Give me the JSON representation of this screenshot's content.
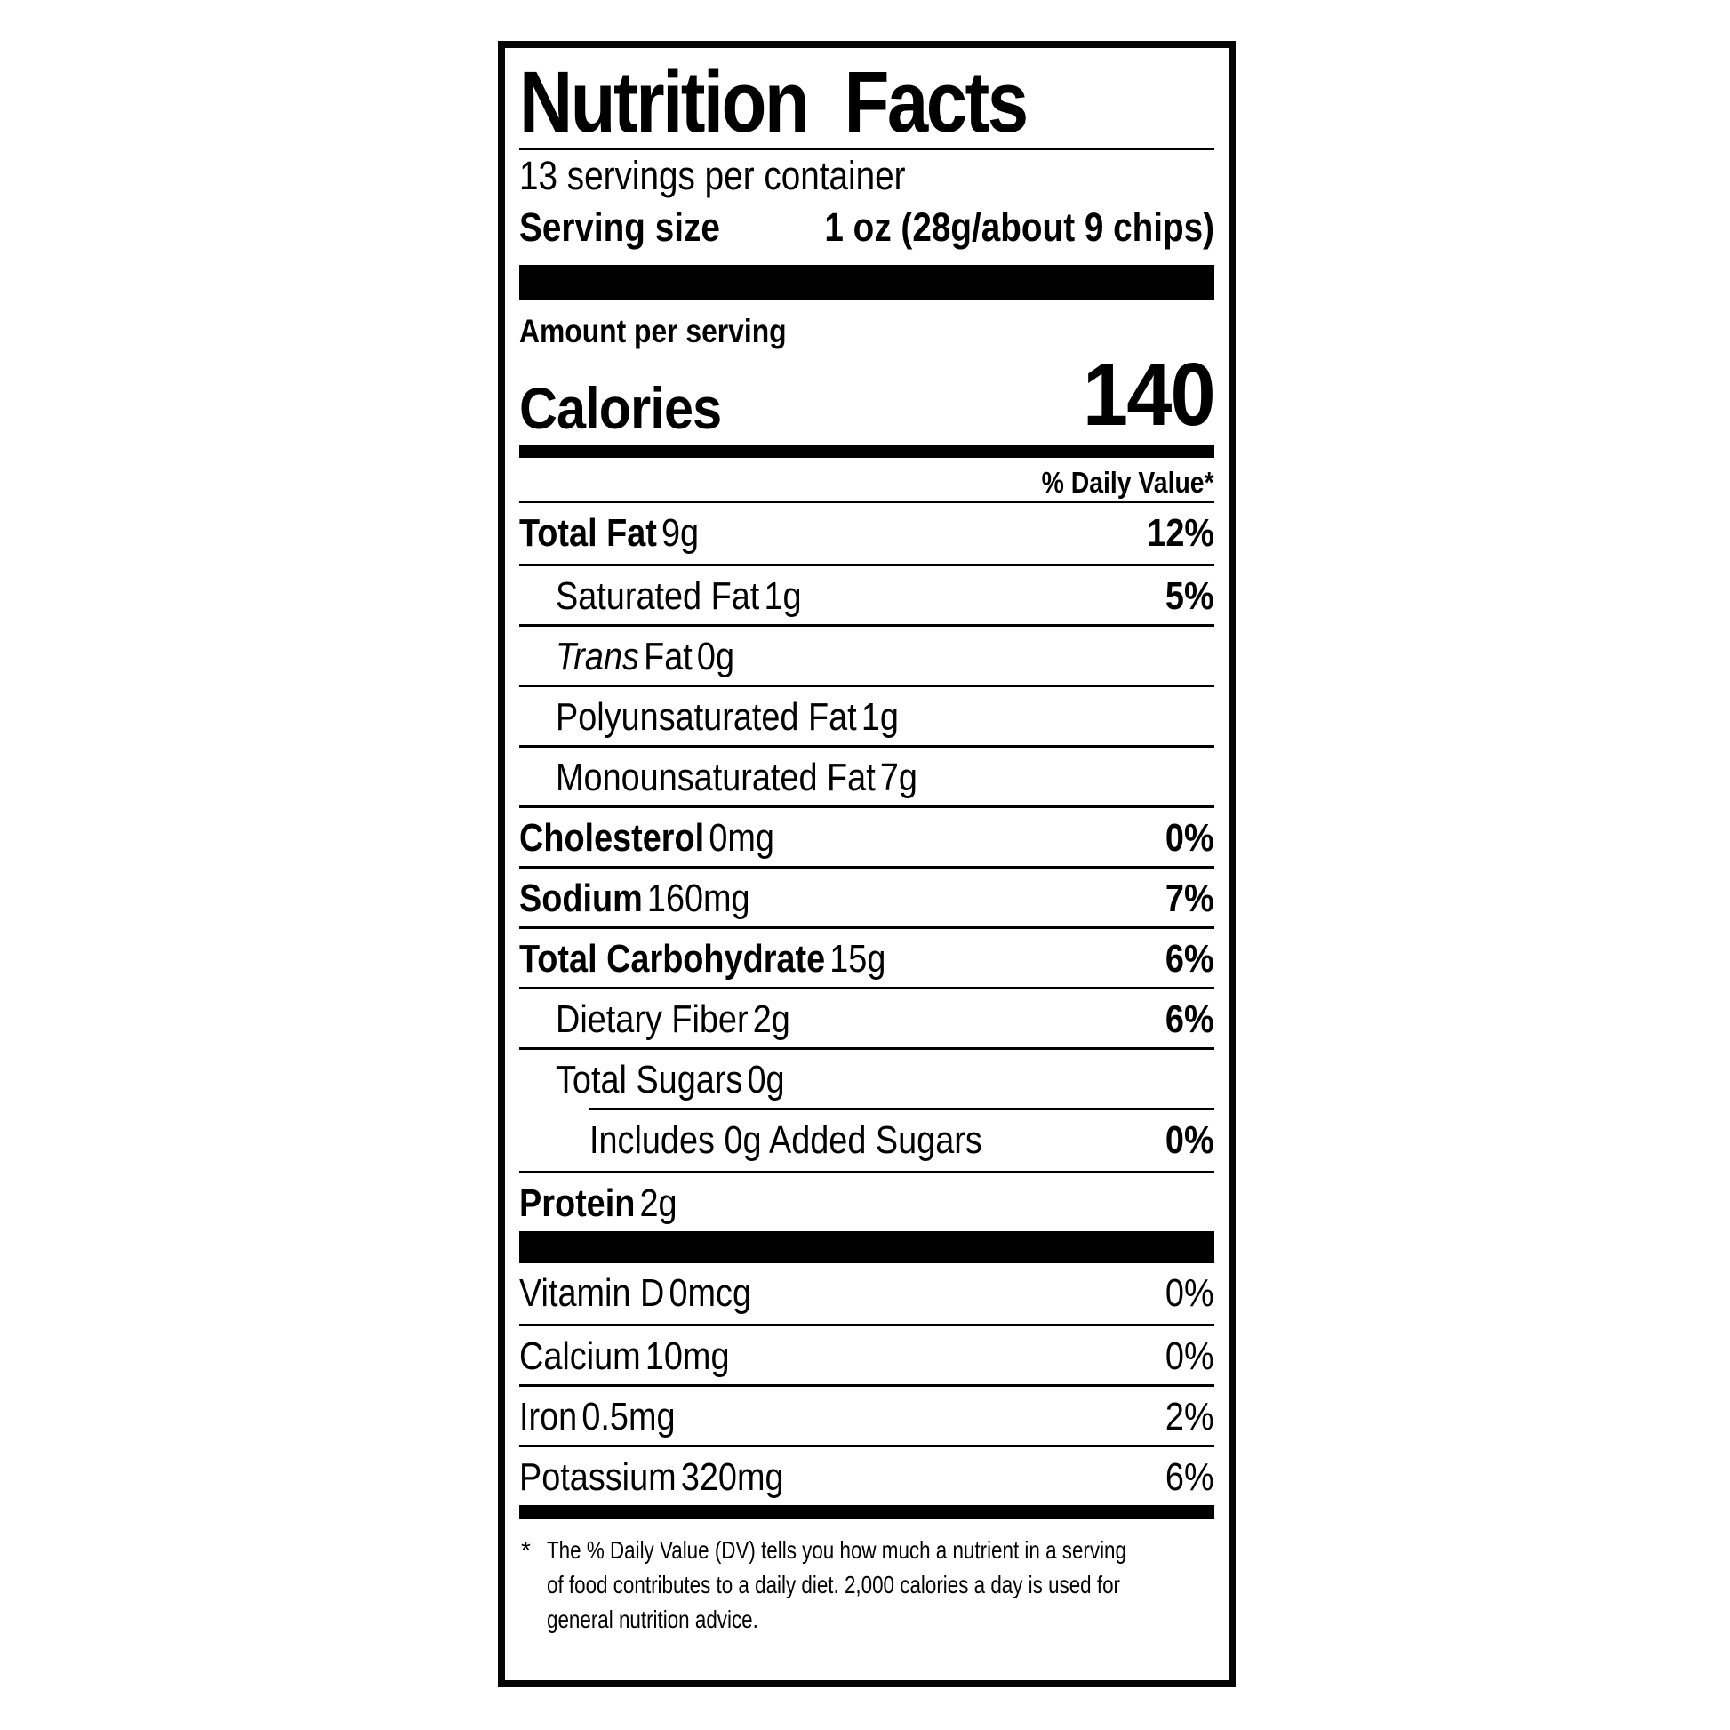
{
  "label": {
    "title": "Nutrition Facts",
    "servings_per_container": "13 servings per container",
    "serving_size": {
      "label": "Serving size",
      "value": "1 oz (28g/about 9 chips)"
    },
    "calories": {
      "context": "Amount per serving",
      "label": "Calories",
      "value": "140"
    },
    "daily_value_header": "% Daily Value*",
    "nutrients": [
      {
        "name": "Total Fat",
        "amount": "9g",
        "dv": "12%"
      },
      {
        "name": "Saturated Fat",
        "amount": "1g",
        "dv": "5%"
      },
      {
        "name": "Trans",
        "name_suffix": "Fat",
        "amount": "0g",
        "dv": ""
      },
      {
        "name": "Polyunsaturated Fat",
        "amount": "1g",
        "dv": ""
      },
      {
        "name": "Monounsaturated Fat",
        "amount": "7g",
        "dv": ""
      },
      {
        "name": "Cholesterol",
        "amount": "0mg",
        "dv": "0%"
      },
      {
        "name": "Sodium",
        "amount": "160mg",
        "dv": "7%"
      },
      {
        "name": "Total Carbohydrate",
        "amount": "15g",
        "dv": "6%"
      },
      {
        "name": "Dietary Fiber",
        "amount": "2g",
        "dv": "6%"
      },
      {
        "name": "Total Sugars",
        "amount": "0g",
        "dv": ""
      },
      {
        "name": "Includes 0g Added Sugars",
        "amount": "",
        "dv": "0%"
      },
      {
        "name": "Protein",
        "amount": "2g",
        "dv": ""
      }
    ],
    "vitamins": [
      {
        "name": "Vitamin D",
        "amount": "0mcg",
        "dv": "0%"
      },
      {
        "name": "Calcium",
        "amount": "10mg",
        "dv": "0%"
      },
      {
        "name": "Iron",
        "amount": "0.5mg",
        "dv": "2%"
      },
      {
        "name": "Potassium",
        "amount": "320mg",
        "dv": "6%"
      }
    ],
    "footnote": {
      "marker": "*",
      "lines": [
        "The % Daily Value (DV) tells you how much a nutrient in a serving",
        "of food contributes to a daily diet. 2,000 calories a day is used for",
        "general nutrition advice."
      ]
    }
  },
  "colors": {
    "text": "#000000",
    "background": "#ffffff",
    "rule": "#000000"
  }
}
